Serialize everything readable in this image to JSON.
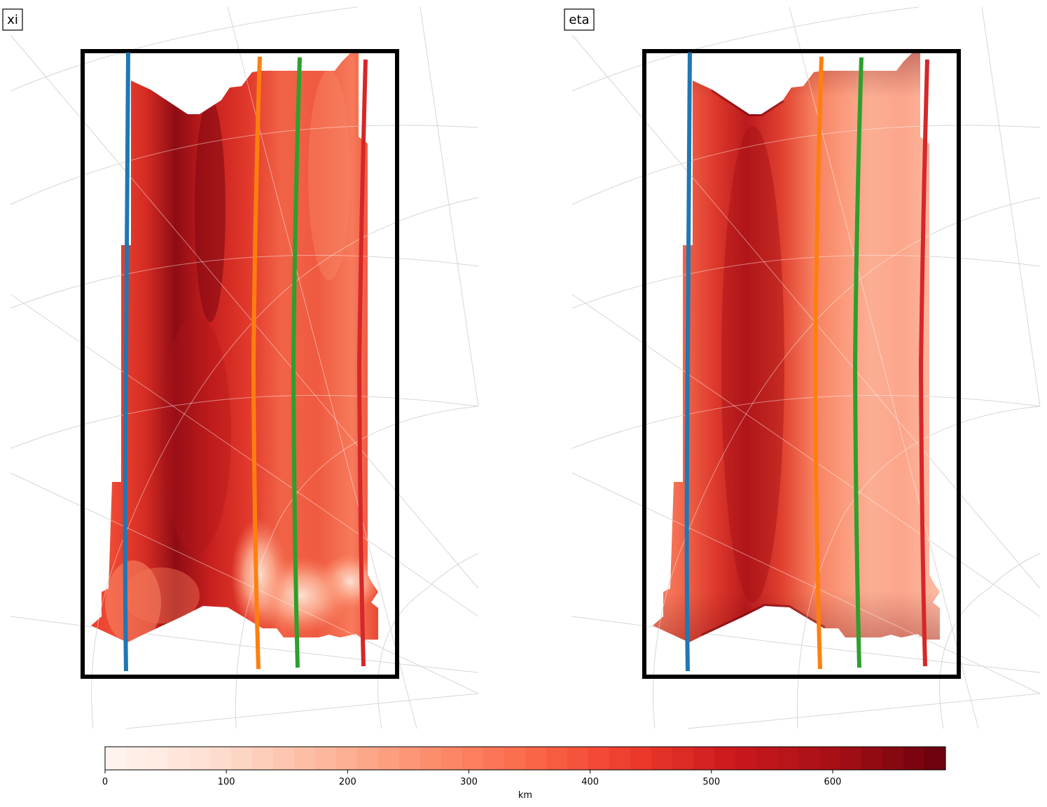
{
  "chart_data": {
    "type": "heatmap",
    "panels": [
      {
        "label": "xi",
        "description": "filled contour map, min-dominant values range ~250-650 km, darkest band near left-center column"
      },
      {
        "label": "eta",
        "description": "filled contour map, values ~150-580 km, darkest band left-center column"
      }
    ],
    "lines": [
      {
        "color": "#1f77b4"
      },
      {
        "color": "#ff7f0e"
      },
      {
        "color": "#2ca02c"
      },
      {
        "color": "#d62728"
      }
    ],
    "colorbar": {
      "cmap": "Reds",
      "range": [
        0,
        693
      ],
      "levels": 40,
      "ticks": [
        0,
        100,
        200,
        300,
        400,
        500,
        600
      ],
      "tick_labels": [
        "0",
        "100",
        "200",
        "300",
        "400",
        "500",
        "600"
      ],
      "label": "km"
    },
    "grid": true
  }
}
